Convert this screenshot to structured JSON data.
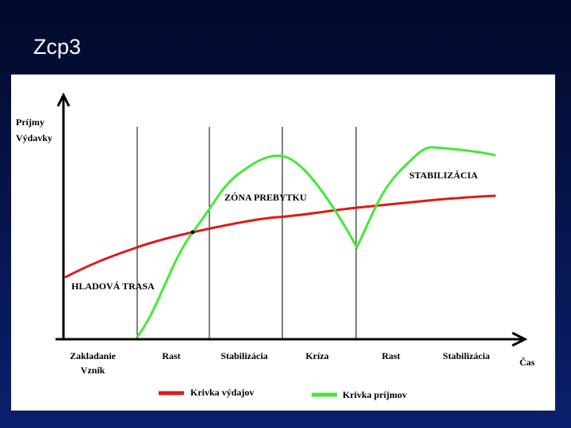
{
  "title": "Zcp3",
  "diagram": {
    "y_axis_label": [
      "Príjmy",
      "Výdavky"
    ],
    "x_axis_label": "Čas",
    "phases": [
      [
        "Zakladanie",
        "Vznik"
      ],
      "Rast",
      "Stabilizácia",
      "Kríza",
      "Rast",
      "Stabilizácia"
    ],
    "zones": [
      "HLADOVÁ TRASA",
      "ZÓNA PREBYTKU",
      "STABILIZÁCIA"
    ],
    "legend": [
      "Krivka výdajov",
      "Krivka príjmov"
    ]
  }
}
